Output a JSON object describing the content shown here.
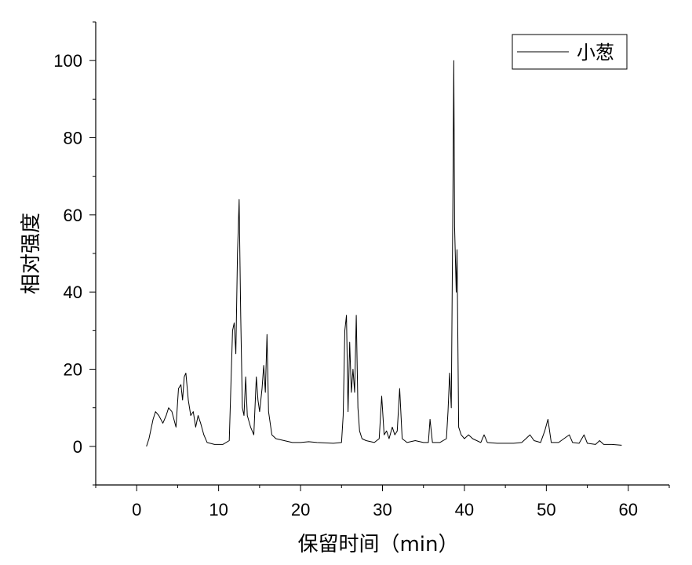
{
  "chart_data": {
    "type": "line",
    "xlabel": "保留时间（min）",
    "ylabel": "相对强度",
    "xlim": [
      -5,
      65
    ],
    "ylim": [
      -10,
      110
    ],
    "xticks": [
      "0",
      "10",
      "20",
      "30",
      "40",
      "50",
      "60"
    ],
    "yticks": [
      "0",
      "20",
      "40",
      "60",
      "80",
      "100"
    ],
    "legend_position": "top-right",
    "series": [
      {
        "name": "小葱",
        "color": "#000000",
        "points": [
          [
            1.2,
            0
          ],
          [
            1.5,
            2
          ],
          [
            2,
            7
          ],
          [
            2.3,
            9
          ],
          [
            2.7,
            8
          ],
          [
            3.2,
            6
          ],
          [
            3.6,
            8
          ],
          [
            3.9,
            10
          ],
          [
            4.3,
            9
          ],
          [
            4.8,
            5
          ],
          [
            5.1,
            15
          ],
          [
            5.4,
            16
          ],
          [
            5.6,
            12
          ],
          [
            5.8,
            18
          ],
          [
            6.0,
            19
          ],
          [
            6.3,
            12
          ],
          [
            6.6,
            8
          ],
          [
            6.9,
            9
          ],
          [
            7.2,
            5
          ],
          [
            7.5,
            8
          ],
          [
            7.8,
            6
          ],
          [
            8.2,
            3
          ],
          [
            8.6,
            1
          ],
          [
            9.5,
            0.5
          ],
          [
            10.5,
            0.5
          ],
          [
            11.3,
            1.5
          ],
          [
            11.7,
            30
          ],
          [
            11.9,
            32
          ],
          [
            12.1,
            24
          ],
          [
            12.3,
            50
          ],
          [
            12.5,
            64
          ],
          [
            12.7,
            34
          ],
          [
            12.9,
            10
          ],
          [
            13.1,
            8
          ],
          [
            13.3,
            18
          ],
          [
            13.5,
            8
          ],
          [
            13.9,
            5
          ],
          [
            14.3,
            3
          ],
          [
            14.6,
            18
          ],
          [
            14.8,
            12
          ],
          [
            15.0,
            9
          ],
          [
            15.3,
            15
          ],
          [
            15.5,
            21
          ],
          [
            15.7,
            14
          ],
          [
            15.9,
            29
          ],
          [
            16.1,
            9
          ],
          [
            16.5,
            3
          ],
          [
            17,
            2
          ],
          [
            18,
            1.5
          ],
          [
            19,
            1
          ],
          [
            20,
            1
          ],
          [
            21,
            1.2
          ],
          [
            22,
            1
          ],
          [
            24,
            0.8
          ],
          [
            25.0,
            1
          ],
          [
            25.2,
            8
          ],
          [
            25.4,
            30
          ],
          [
            25.6,
            34
          ],
          [
            25.8,
            9
          ],
          [
            26.0,
            27
          ],
          [
            26.2,
            14
          ],
          [
            26.4,
            20
          ],
          [
            26.6,
            14
          ],
          [
            26.8,
            34
          ],
          [
            27.0,
            10
          ],
          [
            27.2,
            4
          ],
          [
            27.5,
            2
          ],
          [
            28,
            1.5
          ],
          [
            29,
            1
          ],
          [
            29.6,
            2
          ],
          [
            29.9,
            13
          ],
          [
            30.2,
            3
          ],
          [
            30.5,
            4
          ],
          [
            30.8,
            2
          ],
          [
            31.2,
            5
          ],
          [
            31.5,
            3
          ],
          [
            31.8,
            4
          ],
          [
            32.1,
            15
          ],
          [
            32.4,
            2
          ],
          [
            33,
            1
          ],
          [
            34,
            1.5
          ],
          [
            35,
            1
          ],
          [
            35.6,
            1
          ],
          [
            35.8,
            7
          ],
          [
            36.1,
            1
          ],
          [
            37,
            1
          ],
          [
            37.8,
            2
          ],
          [
            38.0,
            9
          ],
          [
            38.2,
            19
          ],
          [
            38.4,
            10
          ],
          [
            38.6,
            66
          ],
          [
            38.7,
            100
          ],
          [
            38.8,
            57
          ],
          [
            39.0,
            40
          ],
          [
            39.1,
            51
          ],
          [
            39.3,
            5
          ],
          [
            39.6,
            3
          ],
          [
            40,
            2
          ],
          [
            40.5,
            3
          ],
          [
            41,
            2
          ],
          [
            41.5,
            1.5
          ],
          [
            42,
            1
          ],
          [
            42.4,
            3
          ],
          [
            42.8,
            1
          ],
          [
            44,
            0.8
          ],
          [
            46,
            0.8
          ],
          [
            47,
            1
          ],
          [
            47.5,
            2
          ],
          [
            48,
            3
          ],
          [
            48.5,
            1.5
          ],
          [
            49.3,
            1
          ],
          [
            49.8,
            4
          ],
          [
            50.2,
            7
          ],
          [
            50.6,
            1
          ],
          [
            51.5,
            1
          ],
          [
            52.8,
            3
          ],
          [
            53.2,
            1
          ],
          [
            54,
            0.8
          ],
          [
            54.6,
            3
          ],
          [
            55,
            0.8
          ],
          [
            56,
            0.5
          ],
          [
            56.5,
            1.5
          ],
          [
            57,
            0.5
          ],
          [
            58,
            0.5
          ],
          [
            59.2,
            0.3
          ]
        ]
      }
    ]
  }
}
